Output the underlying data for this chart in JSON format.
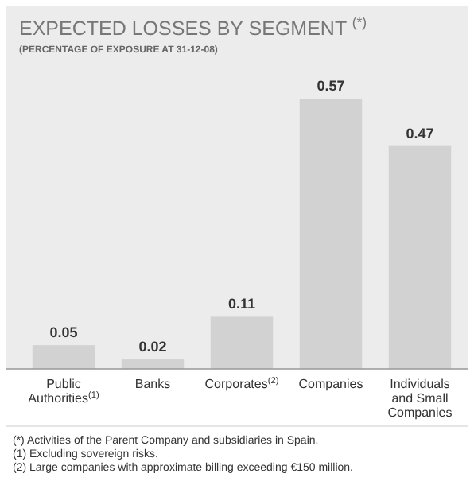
{
  "chart_data": {
    "type": "bar",
    "title": "EXPECTED LOSSES BY SEGMENT $^{(*)}$",
    "subtitle": "(PERCENTAGE OF EXPOSURE AT 31-12-08)",
    "categories": [
      "Public Authorities$^{(1)}$",
      "Banks",
      "Corporates$^{(2)}$",
      "Companies",
      "Individuals and Small Companies"
    ],
    "values": [
      0.05,
      0.02,
      0.11,
      0.57,
      0.47
    ],
    "color": "#d2d2d2",
    "data_labels": true,
    "annotations": [
      "(*) Activities of the Parent Company and subsidiaries in Spain.",
      "(1) Excluding sovereign risks.",
      "(2) Large companies with approximate billing exceeding €150 million."
    ]
  }
}
